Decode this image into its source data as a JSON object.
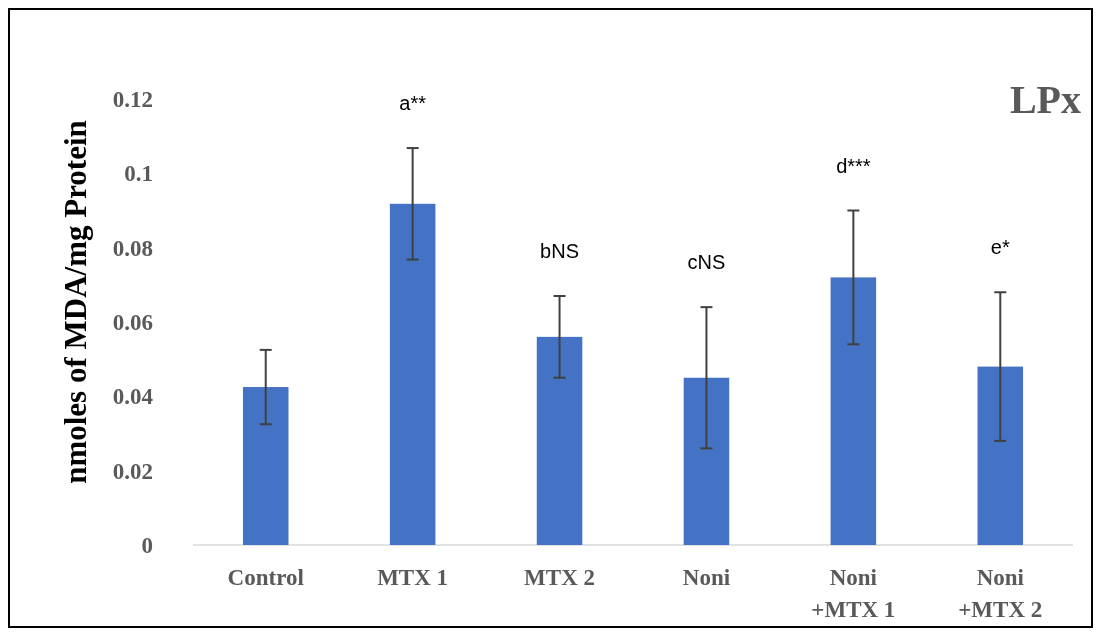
{
  "chart_data": {
    "type": "bar",
    "title": "LPx",
    "ylabel": "nmoles of MDA/mg Protein",
    "categories": [
      "Control",
      "MTX 1",
      "MTX 2",
      "Noni",
      "Noni\n+MTX 1",
      "Noni\n+MTX 2"
    ],
    "values": [
      0.0425,
      0.0918,
      0.056,
      0.045,
      0.072,
      0.048
    ],
    "errors": [
      0.01,
      0.015,
      0.011,
      0.019,
      0.018,
      0.02
    ],
    "color": "#4472c4",
    "ylim": [
      0,
      0.12
    ],
    "yticks": [
      0,
      {
        "value": 0.02,
        "label": "0.02"
      },
      {
        "value": 0.04,
        "label": "0.04"
      },
      {
        "value": 0.06,
        "label": "0.06"
      },
      {
        "value": 0.08,
        "label": "0.08"
      },
      {
        "value": 0.1,
        "label": "0.1"
      },
      {
        "value": 0.12,
        "label": "0.12"
      }
    ],
    "annotations": [
      "a**",
      "bNS",
      "cNS",
      "d***",
      "e*"
    ],
    "grid": false
  }
}
